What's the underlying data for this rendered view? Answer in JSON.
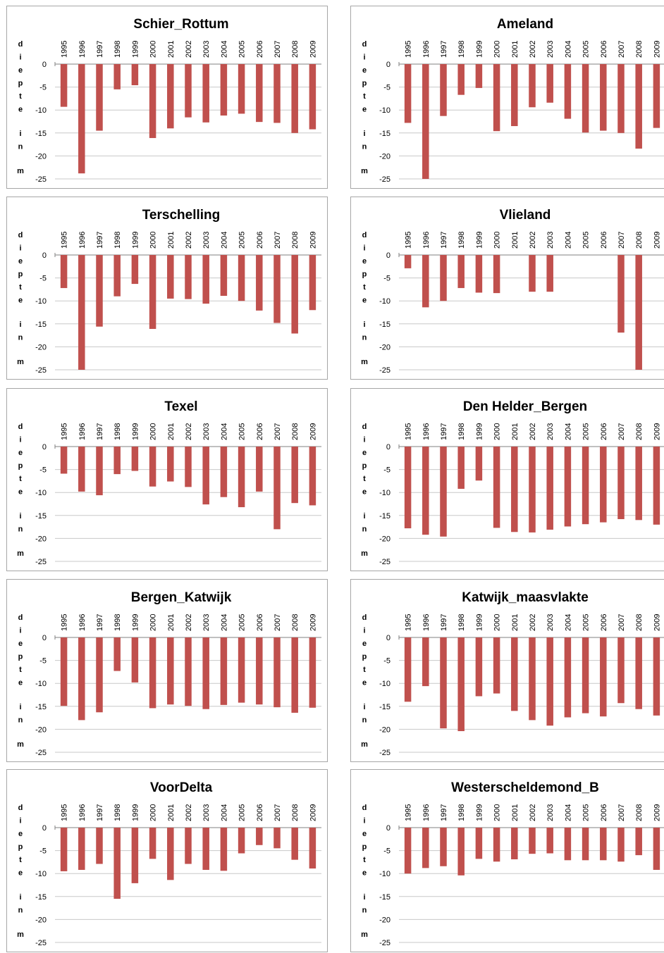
{
  "chart_data": [
    {
      "type": "bar",
      "title": "Schier_Rottum",
      "ylabel": "diepte in m",
      "categories": [
        "1995",
        "1996",
        "1997",
        "1998",
        "1999",
        "2000",
        "2001",
        "2002",
        "2003",
        "2004",
        "2005",
        "2006",
        "2007",
        "2008",
        "2009"
      ],
      "values": [
        -9.3,
        -23.8,
        -14.5,
        -5.5,
        -4.6,
        -16.1,
        -14.0,
        -11.6,
        -12.7,
        -11.2,
        -10.8,
        -12.6,
        -12.8,
        -15.0,
        -14.2
      ],
      "ylim": [
        -25,
        0
      ],
      "yticks": [
        0,
        -5,
        -10,
        -15,
        -20,
        -25
      ],
      "grid": true,
      "color": "#c0504d"
    },
    {
      "type": "bar",
      "title": "Ameland",
      "ylabel": "diepte in m",
      "categories": [
        "1995",
        "1996",
        "1997",
        "1998",
        "1999",
        "2000",
        "2001",
        "2002",
        "2003",
        "2004",
        "2005",
        "2006",
        "2007",
        "2008",
        "2009"
      ],
      "values": [
        -12.8,
        -25.0,
        -11.3,
        -6.7,
        -5.2,
        -14.6,
        -13.5,
        -9.4,
        -8.4,
        -11.9,
        -14.9,
        -14.5,
        -15.0,
        -18.4,
        -13.9
      ],
      "ylim": [
        -25,
        0
      ],
      "yticks": [
        0,
        -5,
        -10,
        -15,
        -20,
        -25
      ],
      "grid": true,
      "color": "#c0504d"
    },
    {
      "type": "bar",
      "title": "Terschelling",
      "ylabel": "diepte in m",
      "categories": [
        "1995",
        "1996",
        "1997",
        "1998",
        "1999",
        "2000",
        "2001",
        "2002",
        "2003",
        "2004",
        "2005",
        "2006",
        "2007",
        "2008",
        "2009"
      ],
      "values": [
        -7.2,
        -25.0,
        -15.6,
        -9.0,
        -6.3,
        -16.1,
        -9.5,
        -9.6,
        -10.6,
        -8.9,
        -10.0,
        -12.1,
        -14.8,
        -17.1,
        -12.0
      ],
      "ylim": [
        -25,
        0
      ],
      "yticks": [
        0,
        -5,
        -10,
        -15,
        -20,
        -25
      ],
      "grid": true,
      "color": "#c0504d"
    },
    {
      "type": "bar",
      "title": "Vlieland",
      "ylabel": "diepte in m",
      "categories": [
        "1995",
        "1996",
        "1997",
        "1998",
        "1999",
        "2000",
        "2001",
        "2002",
        "2003",
        "2004",
        "2005",
        "2006",
        "2007",
        "2008",
        "2009"
      ],
      "values": [
        -2.9,
        -11.4,
        -10.0,
        -7.2,
        -8.2,
        -8.3,
        null,
        -8.0,
        -8.0,
        null,
        null,
        null,
        -16.9,
        -25.0,
        null
      ],
      "ylim": [
        -25,
        0
      ],
      "yticks": [
        0,
        -5,
        -10,
        -15,
        -20,
        -25
      ],
      "grid": true,
      "color": "#c0504d"
    },
    {
      "type": "bar",
      "title": "Texel",
      "ylabel": "diepte in m",
      "categories": [
        "1995",
        "1996",
        "1997",
        "1998",
        "1999",
        "2000",
        "2001",
        "2002",
        "2003",
        "2004",
        "2005",
        "2006",
        "2007",
        "2008",
        "2009"
      ],
      "values": [
        -5.9,
        -9.8,
        -10.6,
        -6.0,
        -5.3,
        -8.7,
        -7.6,
        -8.8,
        -12.6,
        -11.0,
        -13.2,
        -9.8,
        -18.0,
        -12.3,
        -12.8
      ],
      "ylim": [
        -25,
        0
      ],
      "yticks": [
        0,
        -5,
        -10,
        -15,
        -20,
        -25
      ],
      "grid": true,
      "color": "#c0504d"
    },
    {
      "type": "bar",
      "title": "Den Helder_Bergen",
      "ylabel": "diepte in m",
      "categories": [
        "1995",
        "1996",
        "1997",
        "1998",
        "1999",
        "2000",
        "2001",
        "2002",
        "2003",
        "2004",
        "2005",
        "2006",
        "2007",
        "2008",
        "2009"
      ],
      "values": [
        -17.8,
        -19.2,
        -19.6,
        -9.2,
        -7.4,
        -17.7,
        -18.6,
        -18.7,
        -18.1,
        -17.4,
        -16.9,
        -16.5,
        -15.8,
        -16.0,
        -17.0
      ],
      "ylim": [
        -25,
        0
      ],
      "yticks": [
        0,
        -5,
        -10,
        -15,
        -20,
        -25
      ],
      "grid": true,
      "color": "#c0504d"
    },
    {
      "type": "bar",
      "title": "Bergen_Katwijk",
      "ylabel": "diepte in m",
      "categories": [
        "1995",
        "1996",
        "1997",
        "1998",
        "1999",
        "2000",
        "2001",
        "2002",
        "2003",
        "2004",
        "2005",
        "2006",
        "2007",
        "2008",
        "2009"
      ],
      "values": [
        -14.9,
        -18.0,
        -16.3,
        -7.3,
        -9.8,
        -15.4,
        -14.6,
        -14.9,
        -15.6,
        -14.7,
        -14.2,
        -14.6,
        -15.2,
        -16.4,
        -15.3
      ],
      "ylim": [
        -25,
        0
      ],
      "yticks": [
        0,
        -5,
        -10,
        -15,
        -20,
        -25
      ],
      "grid": true,
      "color": "#c0504d"
    },
    {
      "type": "bar",
      "title": "Katwijk_maasvlakte",
      "ylabel": "diepte in m",
      "categories": [
        "1995",
        "1996",
        "1997",
        "1998",
        "1999",
        "2000",
        "2001",
        "2002",
        "2003",
        "2004",
        "2005",
        "2006",
        "2007",
        "2008",
        "2009"
      ],
      "values": [
        -14.0,
        -10.6,
        -19.8,
        -20.4,
        -12.8,
        -12.2,
        -16.0,
        -18.0,
        -19.2,
        -17.4,
        -16.5,
        -17.2,
        -14.3,
        -15.6,
        -17.0
      ],
      "ylim": [
        -25,
        0
      ],
      "yticks": [
        0,
        -5,
        -10,
        -15,
        -20,
        -25
      ],
      "grid": true,
      "color": "#c0504d"
    },
    {
      "type": "bar",
      "title": "VoorDelta",
      "ylabel": "diepte in m",
      "categories": [
        "1995",
        "1996",
        "1997",
        "1998",
        "1999",
        "2000",
        "2001",
        "2002",
        "2003",
        "2004",
        "2005",
        "2006",
        "2007",
        "2008",
        "2009"
      ],
      "values": [
        -9.5,
        -9.2,
        -7.9,
        -15.5,
        -12.1,
        -6.8,
        -11.4,
        -7.9,
        -9.2,
        -9.4,
        -5.6,
        -3.8,
        -4.5,
        -7.0,
        -8.9
      ],
      "ylim": [
        -25,
        0
      ],
      "yticks": [
        0,
        -5,
        -10,
        -15,
        -20,
        -25
      ],
      "grid": true,
      "color": "#c0504d"
    },
    {
      "type": "bar",
      "title": "Westerscheldemond_B",
      "ylabel": "diepte in m",
      "categories": [
        "1995",
        "1996",
        "1997",
        "1998",
        "1999",
        "2000",
        "2001",
        "2002",
        "2003",
        "2004",
        "2005",
        "2006",
        "2007",
        "2008",
        "2009"
      ],
      "values": [
        -10.0,
        -8.8,
        -8.4,
        -10.4,
        -6.8,
        -7.4,
        -6.9,
        -5.7,
        -5.6,
        -7.1,
        -7.1,
        -7.1,
        -7.4,
        -6.0,
        -9.2
      ],
      "ylim": [
        -25,
        0
      ],
      "yticks": [
        0,
        -5,
        -10,
        -15,
        -20,
        -25
      ],
      "grid": true,
      "color": "#c0504d"
    }
  ]
}
